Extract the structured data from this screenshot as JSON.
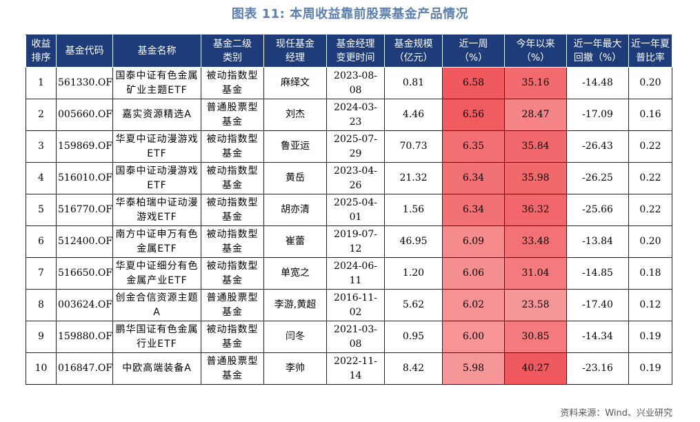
{
  "title": "图表 11: 本周收益靠前股票基金产品情况",
  "headers": [
    "收益\n排序",
    "基金代码",
    "基金名称",
    "基金二级\n类别",
    "现任基金\n经理",
    "基金经理\n变更时间",
    "基金规模\n（亿元）",
    "近一周\n（%）",
    "今年以来\n（%）",
    "近一年最大\n回撤（%）",
    "近一年夏\n普比率"
  ],
  "rows": [
    {
      "rank": "1",
      "code": "561330.OF",
      "name": "国泰中证有色金属矿业主题ETF",
      "category": "被动指数型基金",
      "manager": "麻绎文",
      "change_date": "2023-08-08",
      "size": "0.81",
      "week": "6.58",
      "ytd": "35.16",
      "max_dd": "-14.48",
      "sharpe": "0.20"
    },
    {
      "rank": "2",
      "code": "005660.OF",
      "name": "嘉实资源精选A",
      "category": "普通股票型基金",
      "manager": "刘杰",
      "change_date": "2024-03-23",
      "size": "4.46",
      "week": "6.56",
      "ytd": "28.47",
      "max_dd": "-17.09",
      "sharpe": "0.16"
    },
    {
      "rank": "3",
      "code": "159869.OF",
      "name": "华夏中证动漫游戏ETF",
      "category": "被动指数型基金",
      "manager": "鲁亚运",
      "change_date": "2025-07-29",
      "size": "70.73",
      "week": "6.35",
      "ytd": "35.84",
      "max_dd": "-26.43",
      "sharpe": "0.22"
    },
    {
      "rank": "4",
      "code": "516010.OF",
      "name": "国泰中证动漫游戏ETF",
      "category": "被动指数型基金",
      "manager": "黄岳",
      "change_date": "2023-04-26",
      "size": "21.32",
      "week": "6.34",
      "ytd": "35.98",
      "max_dd": "-26.25",
      "sharpe": "0.22"
    },
    {
      "rank": "5",
      "code": "516770.OF",
      "name": "华泰柏瑞中证动漫游戏ETF",
      "category": "被动指数型基金",
      "manager": "胡亦清",
      "change_date": "2025-04-01",
      "size": "1.56",
      "week": "6.34",
      "ytd": "36.32",
      "max_dd": "-25.66",
      "sharpe": "0.22"
    },
    {
      "rank": "6",
      "code": "512400.OF",
      "name": "南方中证申万有色金属ETF",
      "category": "被动指数型基金",
      "manager": "崔蕾",
      "change_date": "2019-07-12",
      "size": "46.95",
      "week": "6.09",
      "ytd": "33.48",
      "max_dd": "-13.84",
      "sharpe": "0.20"
    },
    {
      "rank": "7",
      "code": "516650.OF",
      "name": "华夏中证细分有色金属产业ETF",
      "category": "被动指数型基金",
      "manager": "单宽之",
      "change_date": "2024-06-11",
      "size": "1.20",
      "week": "6.06",
      "ytd": "31.04",
      "max_dd": "-14.85",
      "sharpe": "0.18"
    },
    {
      "rank": "8",
      "code": "003624.OF",
      "name": "创金合信资源主题A",
      "category": "普通股票型基金",
      "manager": "李游,黄超",
      "change_date": "2016-11-02",
      "size": "5.62",
      "week": "6.02",
      "ytd": "23.58",
      "max_dd": "-17.40",
      "sharpe": "0.12"
    },
    {
      "rank": "9",
      "code": "159880.OF",
      "name": "鹏华国证有色金属行业ETF",
      "category": "被动指数型基金",
      "manager": "闫冬",
      "change_date": "2021-03-08",
      "size": "0.95",
      "week": "6.00",
      "ytd": "30.85",
      "max_dd": "-14.34",
      "sharpe": "0.19"
    },
    {
      "rank": "10",
      "code": "016847.OF",
      "name": "中欧高端装备A",
      "category": "普通股票型基金",
      "manager": "李帅",
      "change_date": "2022-11-14",
      "size": "8.42",
      "week": "5.98",
      "ytd": "40.27",
      "max_dd": "-23.16",
      "sharpe": "0.19"
    }
  ],
  "colors": {
    "header_bg": "#1f3c7a",
    "title": "#5b7fb0",
    "heat_max": "#f0595d",
    "heat_min": "#fde0e0"
  },
  "source": "资料来源：Wind、兴业研究"
}
